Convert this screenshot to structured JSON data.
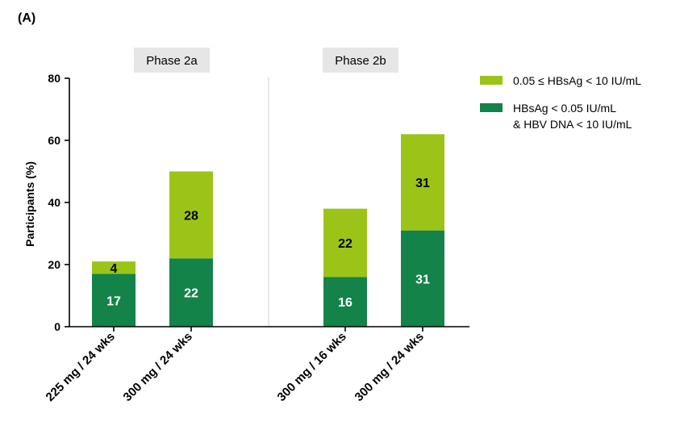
{
  "panel_label": "(A)",
  "colors": {
    "dark": "#13834A",
    "light": "#9CC418",
    "phase_box": "#E6E6E6",
    "axis": "#000000",
    "divider": "#CCCCCC"
  },
  "chart_data": {
    "type": "bar",
    "stacked": true,
    "title": "",
    "xlabel": "",
    "ylabel": "Participants (%)",
    "ylim": [
      0,
      80
    ],
    "yticks": [
      0,
      20,
      40,
      60,
      80
    ],
    "grid": false,
    "legend_position": "top-right",
    "phases": [
      {
        "label": "Phase 2a",
        "categories": [
          "225 mg / 24 wks",
          "300 mg / 24 wks"
        ]
      },
      {
        "label": "Phase 2b",
        "categories": [
          "300 mg / 16 wks",
          "300 mg / 24 wks"
        ]
      }
    ],
    "categories": [
      "225 mg / 24 wks",
      "300 mg / 24 wks",
      "300 mg / 16 wks",
      "300 mg / 24 wks"
    ],
    "series": [
      {
        "name": "HBsAg < 0.05 IU/mL\n& HBV DNA < 10 IU/mL",
        "legend_lines": [
          "HBsAg < 0.05 IU/mL",
          "& HBV DNA < 10 IU/mL"
        ],
        "color": "#13834A",
        "values": [
          17,
          22,
          16,
          31
        ]
      },
      {
        "name": "0.05 ≤ HBsAg < 10 IU/mL",
        "legend_lines": [
          "0.05 ≤ HBsAg < 10 IU/mL"
        ],
        "color": "#9CC418",
        "values": [
          4,
          28,
          22,
          31
        ]
      }
    ],
    "legend_order": [
      1,
      0
    ]
  }
}
